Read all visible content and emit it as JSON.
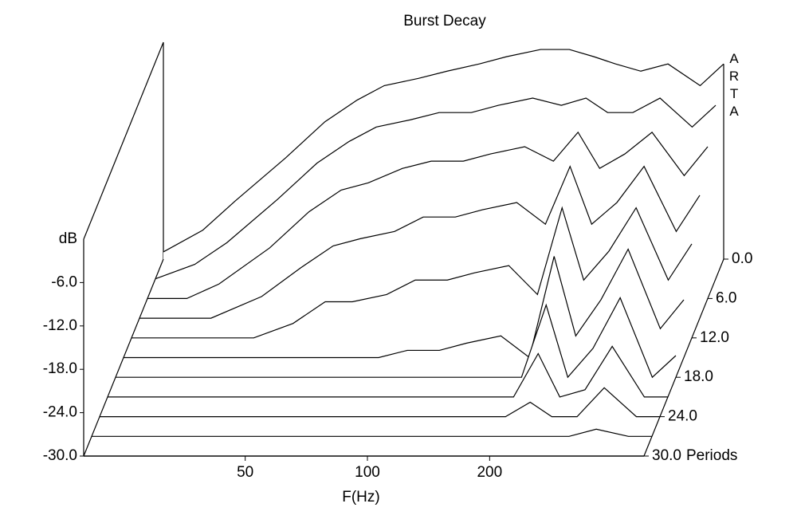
{
  "chart_data": {
    "type": "waterfall",
    "title": "Burst Decay",
    "xlabel": "F(Hz)",
    "ylabel": "dB",
    "zlabel": "Periods",
    "watermark": "ARTA",
    "color": "#000000",
    "xscale": "log",
    "x": [
      20,
      25,
      30,
      40,
      50,
      60,
      70,
      85,
      100,
      120,
      140,
      170,
      200,
      230,
      260,
      300,
      350,
      420,
      480
    ],
    "xlim": [
      20,
      480
    ],
    "xticks": [
      50,
      100,
      200
    ],
    "ylim": [
      -30,
      0
    ],
    "yticks": [
      {
        "value": -6,
        "label": "-6.0"
      },
      {
        "value": -12,
        "label": "-12.0"
      },
      {
        "value": -18,
        "label": "-18.0"
      },
      {
        "value": -24,
        "label": "-24.0"
      },
      {
        "value": -30,
        "label": "-30.0"
      }
    ],
    "zlim": [
      0,
      30
    ],
    "zticks": [
      {
        "value": 0,
        "label": "0.0"
      },
      {
        "value": 6,
        "label": "6.0"
      },
      {
        "value": 12,
        "label": "12.0"
      },
      {
        "value": 18,
        "label": "18.0"
      },
      {
        "value": 24,
        "label": "24.0"
      },
      {
        "value": 30,
        "label": "30.0"
      }
    ],
    "series": [
      {
        "period": 0,
        "values": [
          -29,
          -26,
          -22,
          -16,
          -11,
          -8,
          -6,
          -5,
          -4,
          -3,
          -2,
          -1,
          -1,
          -2,
          -3,
          -4,
          -3,
          -6,
          -3
        ]
      },
      {
        "period": 3,
        "values": [
          -30,
          -28,
          -25,
          -19,
          -14,
          -11,
          -9,
          -8,
          -7,
          -7,
          -6,
          -5,
          -6,
          -5,
          -7,
          -7,
          -5,
          -9,
          -6
        ]
      },
      {
        "period": 6,
        "values": [
          -30,
          -30,
          -28,
          -23,
          -18,
          -15,
          -14,
          -12,
          -11,
          -11,
          -10,
          -9,
          -11,
          -7,
          -12,
          -10,
          -7,
          -13,
          -9
        ]
      },
      {
        "period": 9,
        "values": [
          -30,
          -30,
          -30,
          -27,
          -23,
          -20,
          -19,
          -18,
          -16,
          -16,
          -15,
          -14,
          -17,
          -9,
          -17,
          -14,
          -9,
          -18,
          -13
        ]
      },
      {
        "period": 12,
        "values": [
          -30,
          -30,
          -30,
          -30,
          -28,
          -25,
          -25,
          -24,
          -22,
          -22,
          -21,
          -20,
          -24,
          -12,
          -22,
          -18,
          -12,
          -22,
          -17
        ]
      },
      {
        "period": 15,
        "values": [
          -30,
          -30,
          -30,
          -30,
          -30,
          -30,
          -30,
          -30,
          -29,
          -29,
          -28,
          -27,
          -30,
          -16,
          -27,
          -22,
          -15,
          -26,
          -22
        ]
      },
      {
        "period": 18,
        "values": [
          -30,
          -30,
          -30,
          -30,
          -30,
          -30,
          -30,
          -30,
          -30,
          -30,
          -30,
          -30,
          -30,
          -20,
          -30,
          -26,
          -19,
          -30,
          -27
        ]
      },
      {
        "period": 21,
        "values": [
          -30,
          -30,
          -30,
          -30,
          -30,
          -30,
          -30,
          -30,
          -30,
          -30,
          -30,
          -30,
          -30,
          -24,
          -30,
          -29,
          -23,
          -30,
          -30
        ]
      },
      {
        "period": 24,
        "values": [
          -30,
          -30,
          -30,
          -30,
          -30,
          -30,
          -30,
          -30,
          -30,
          -30,
          -30,
          -30,
          -30,
          -28,
          -30,
          -30,
          -26,
          -30,
          -30
        ]
      },
      {
        "period": 27,
        "values": [
          -30,
          -30,
          -30,
          -30,
          -30,
          -30,
          -30,
          -30,
          -30,
          -30,
          -30,
          -30,
          -30,
          -30,
          -30,
          -30,
          -29,
          -30,
          -30
        ]
      },
      {
        "period": 30,
        "values": [
          -30,
          -30,
          -30,
          -30,
          -30,
          -30,
          -30,
          -30,
          -30,
          -30,
          -30,
          -30,
          -30,
          -30,
          -30,
          -30,
          -30,
          -30,
          -30
        ]
      }
    ]
  }
}
